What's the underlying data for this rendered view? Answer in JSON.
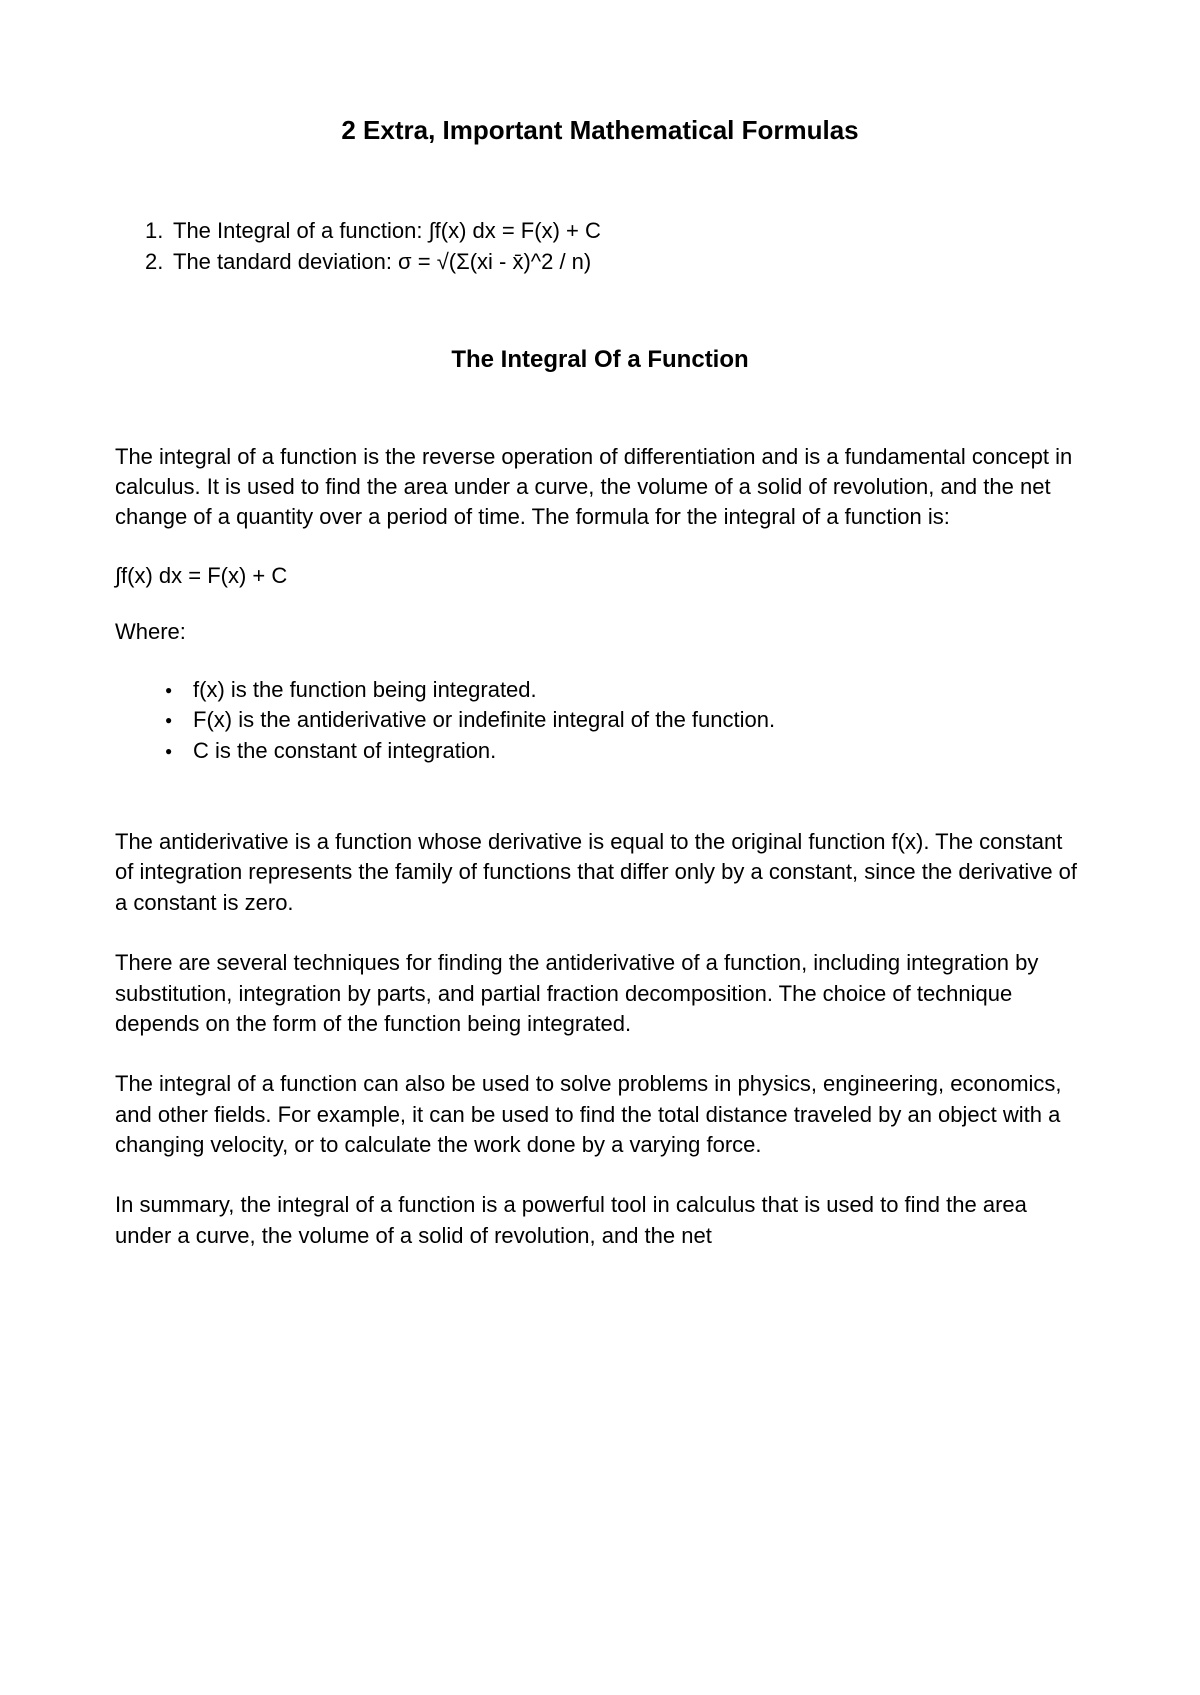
{
  "title": "2 Extra, Important Mathematical Formulas",
  "numbered_items": [
    {
      "num": "1.",
      "text": "The Integral of a function: ∫f(x) dx = F(x) + C"
    },
    {
      "num": "2.",
      "text": "The tandard deviation: σ = √(Σ(xi - x̄)^2 / n)"
    }
  ],
  "section_title": "The Integral Of a Function",
  "para1": "The integral of a function is the reverse operation of differentiation and is a fundamental concept in calculus. It is used to find the area under a curve, the volume of a solid of revolution, and the net change of a quantity over a period of time. The formula for the integral of a function is:",
  "formula": "∫f(x) dx = F(x) + C",
  "where_label": "Where:",
  "bullets": [
    "f(x) is the function being integrated.",
    "F(x) is the antiderivative or indefinite integral of the function.",
    "C is the constant of integration."
  ],
  "para2": "The antiderivative is a function whose derivative is equal to the original function f(x). The constant of integration represents the family of functions that differ only by a constant, since the derivative of a constant is zero.",
  "para3": "There are several techniques for finding the antiderivative of a function, including integration by substitution, integration by parts, and partial fraction decomposition. The choice of technique depends on the form of the function being integrated.",
  "para4": "The integral of a function can also be used to solve problems in physics, engineering, economics, and other fields. For example, it can be used to find the total distance traveled by an object with a changing velocity, or to calculate the work done by a varying force.",
  "para5": "In summary, the integral of a function is a powerful tool in calculus that is used to find the area under a curve, the volume of a solid of revolution, and the net"
}
